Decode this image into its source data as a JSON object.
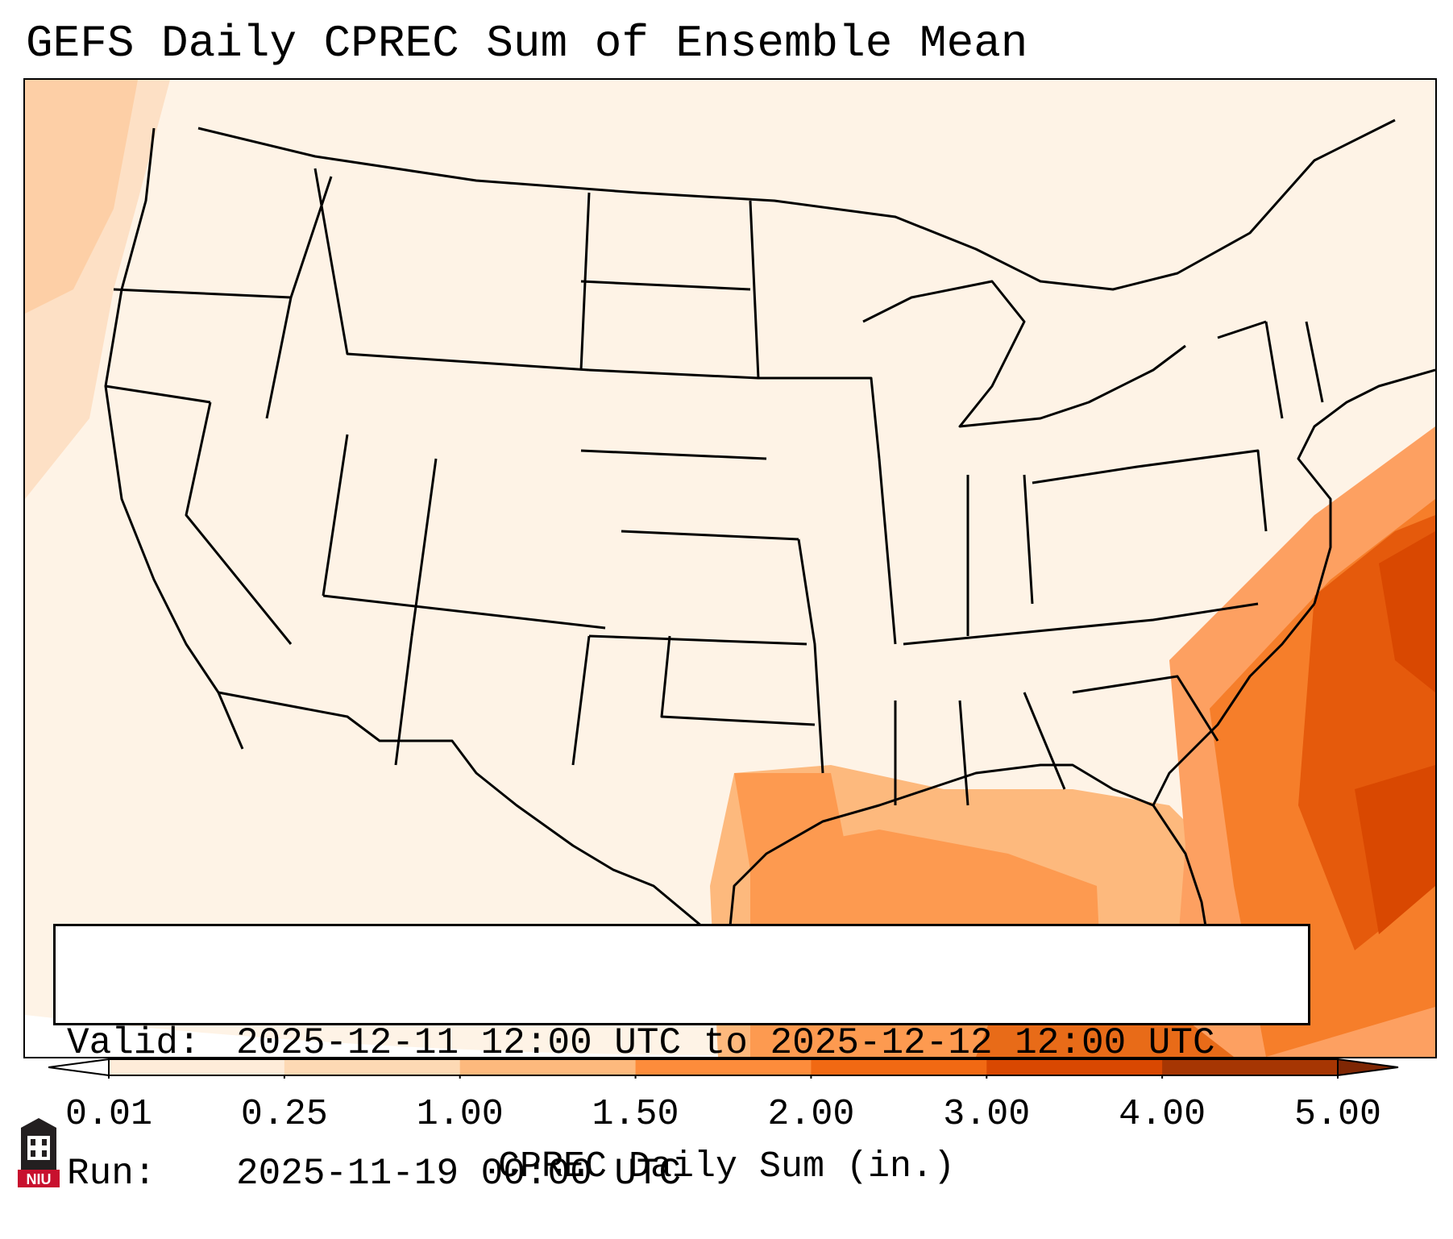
{
  "title": "GEFS Daily CPREC Sum of Ensemble Mean",
  "info": {
    "valid_label": "Valid:",
    "valid_value": "2025-12-11 12:00 UTC to 2025-12-12 12:00 UTC",
    "run_label": "Run:",
    "run_value": "2025-11-19 00:00 UTC"
  },
  "colorbar": {
    "title": "CPREC Daily Sum (in.)",
    "ticks": [
      "0.01",
      "0.25",
      "1.00",
      "1.50",
      "2.00",
      "3.00",
      "4.00",
      "5.00"
    ],
    "colors": [
      "#fff5eb",
      "#feecd9",
      "#fdd9b4",
      "#fdb97d",
      "#fd8c3b",
      "#f16913",
      "#d94801",
      "#a63603"
    ],
    "under_color": "#ffffff",
    "over_color": "#7f2704"
  },
  "logo": {
    "text": "NIU",
    "colors": {
      "badge": "#c8102e",
      "tower": "#231f20"
    }
  }
}
